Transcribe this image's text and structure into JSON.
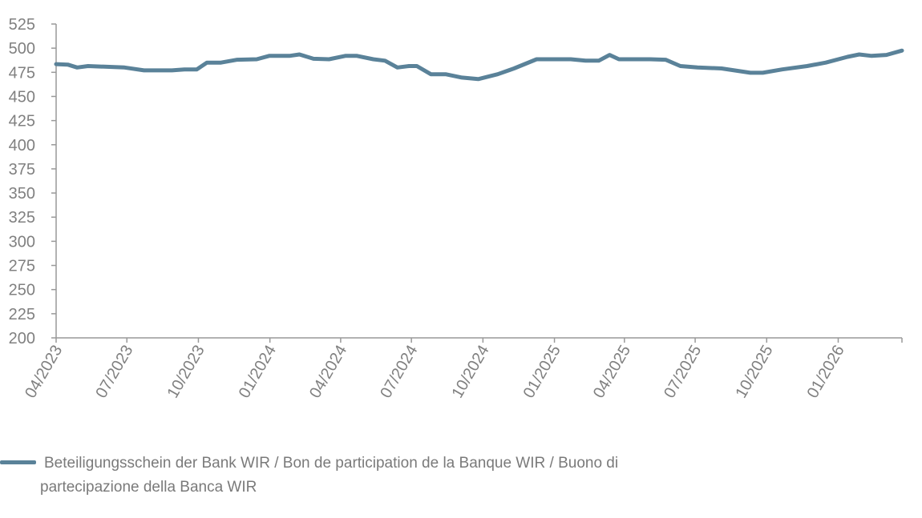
{
  "chart_data": {
    "type": "line",
    "title": "",
    "xlabel": "",
    "ylabel": "",
    "ylim": [
      200,
      525
    ],
    "yticks": [
      "200",
      "225",
      "250",
      "275",
      "300",
      "325",
      "350",
      "375",
      "400",
      "425",
      "450",
      "475",
      "500",
      "525"
    ],
    "xlim": [
      "2023-04-01",
      "2026-03-24"
    ],
    "xticks": [
      {
        "date": "2023-04-01",
        "label": "04/2023"
      },
      {
        "date": "2023-07-01",
        "label": "07/2023"
      },
      {
        "date": "2023-10-01",
        "label": "10/2023"
      },
      {
        "date": "2024-01-01",
        "label": "01/2024"
      },
      {
        "date": "2024-04-01",
        "label": "04/2024"
      },
      {
        "date": "2024-07-01",
        "label": "07/2024"
      },
      {
        "date": "2024-10-01",
        "label": "10/2024"
      },
      {
        "date": "2025-01-01",
        "label": "01/2025"
      },
      {
        "date": "2025-04-01",
        "label": "04/2025"
      },
      {
        "date": "2025-07-01",
        "label": "07/2025"
      },
      {
        "date": "2025-10-01",
        "label": "10/2025"
      },
      {
        "date": "2026-01-01",
        "label": "01/2026"
      }
    ],
    "grid": false,
    "legend_placement": "bottom-left",
    "series": [
      {
        "name": "Beteiligungsschein der Bank WIR / Bon de participation de la Banque WIR / Buono di partecipazione della Banca WIR",
        "color": "#5a8299",
        "x": [
          "2023-04-01",
          "2023-04-16",
          "2023-04-28",
          "2023-05-12",
          "2023-06-28",
          "2023-07-23",
          "2023-08-28",
          "2023-09-13",
          "2023-09-29",
          "2023-10-12",
          "2023-10-30",
          "2023-11-20",
          "2023-12-15",
          "2023-12-31",
          "2024-01-26",
          "2024-02-08",
          "2024-02-26",
          "2024-03-17",
          "2024-04-07",
          "2024-04-22",
          "2024-05-13",
          "2024-05-28",
          "2024-06-13",
          "2024-06-28",
          "2024-07-08",
          "2024-07-26",
          "2024-08-14",
          "2024-09-04",
          "2024-09-25",
          "2024-10-20",
          "2024-11-10",
          "2024-12-09",
          "2025-01-22",
          "2025-02-10",
          "2025-02-27",
          "2025-03-13",
          "2025-03-25",
          "2025-05-04",
          "2025-05-24",
          "2025-06-12",
          "2025-07-04",
          "2025-08-04",
          "2025-09-10",
          "2025-09-26",
          "2025-10-21",
          "2025-11-22",
          "2025-12-16",
          "2026-01-13",
          "2026-01-28",
          "2026-02-13",
          "2026-03-04",
          "2026-03-24"
        ],
        "y": [
          483.5,
          483,
          480,
          481.5,
          480,
          477,
          477,
          478,
          478,
          485,
          485,
          488,
          488.5,
          492,
          492,
          493.5,
          489,
          488.5,
          492,
          492,
          488.5,
          487,
          480,
          481.5,
          481.5,
          473,
          473,
          469.5,
          468,
          473,
          479,
          488.5,
          488.5,
          487,
          487,
          493,
          488.5,
          488.5,
          488,
          481.5,
          480,
          479,
          474.5,
          474.5,
          478,
          481.5,
          485,
          491,
          493.5,
          492,
          493,
          497.5
        ]
      }
    ]
  },
  "legend": {
    "text": "Beteiligungsschein der Bank WIR / Bon de participation de la Banque WIR / Buono di partecipazione della Banca WIR"
  }
}
